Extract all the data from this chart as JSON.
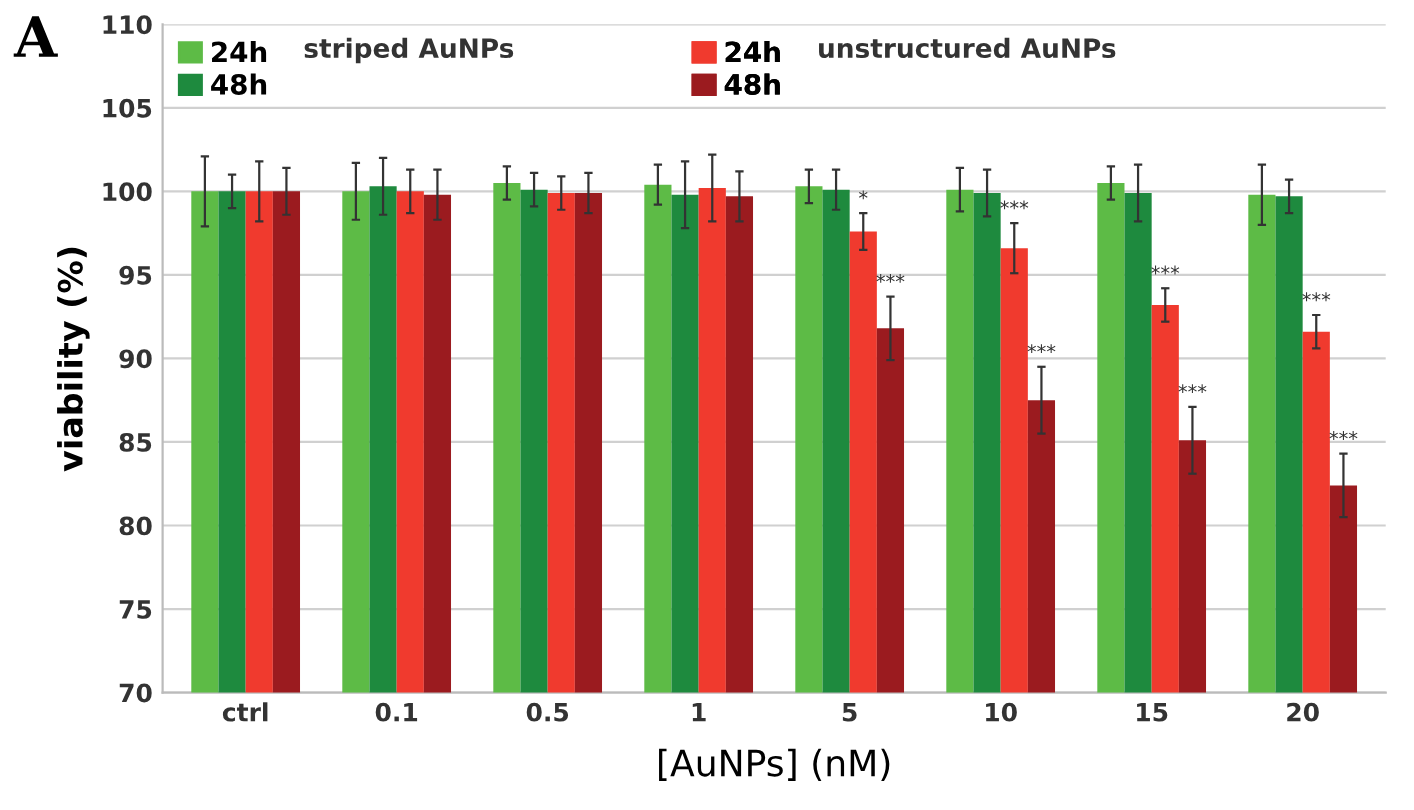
{
  "chart_data": {
    "type": "bar",
    "title": "A",
    "xlabel": "[AuNPs] (nM)",
    "ylabel": "viability (%)",
    "categories": [
      "ctrl",
      "0.1",
      "0.5",
      "1",
      "5",
      "10",
      "15",
      "20"
    ],
    "series": [
      {
        "name": "24h",
        "color": "#5dbb46",
        "values": [
          100,
          100,
          100.5,
          100.4,
          100.3,
          100.1,
          100.5,
          99.8
        ],
        "errors": [
          2.1,
          1.7,
          1.0,
          1.2,
          1.0,
          1.3,
          1.0,
          1.8
        ]
      },
      {
        "name": "48h",
        "color": "#1e8a3e",
        "values": [
          100,
          100.3,
          100.1,
          99.8,
          100.1,
          99.9,
          99.9,
          99.7
        ],
        "errors": [
          1.0,
          1.7,
          1.0,
          2.0,
          1.2,
          1.4,
          1.7,
          1.0
        ]
      },
      {
        "name": "24h",
        "color": "#f03a2e",
        "values": [
          100,
          100,
          99.9,
          100.2,
          97.6,
          96.6,
          93.2,
          91.6
        ],
        "errors": [
          1.8,
          1.3,
          1.0,
          2.0,
          1.1,
          1.5,
          1.0,
          1.0
        ]
      },
      {
        "name": "48h",
        "color": "#9b1b1f",
        "values": [
          100,
          99.8,
          99.9,
          99.7,
          91.8,
          87.5,
          85.1,
          82.4
        ],
        "errors": [
          1.4,
          1.5,
          1.2,
          1.5,
          1.9,
          2.0,
          2.0,
          1.9
        ]
      }
    ],
    "annotations": [
      "striped AuNPs",
      "unstructured AuNPs",
      {
        "text": "*",
        "x": "5",
        "y": 97.6
      },
      {
        "text": "***",
        "x": "5",
        "y": 91.8
      },
      {
        "text": "***",
        "x": "10",
        "y": 96.6
      },
      {
        "text": "***",
        "x": "10",
        "y": 87.5
      },
      {
        "text": "***",
        "x": "15",
        "y": 93.2
      },
      {
        "text": "***",
        "x": "15",
        "y": 85.1
      },
      {
        "text": "***",
        "x": "20",
        "y": 91.6
      },
      {
        "text": "***",
        "x": "20",
        "y": 82.4
      }
    ],
    "ylim": [
      70,
      110
    ],
    "yticks": [
      70,
      75,
      80,
      85,
      90,
      95,
      100,
      105,
      110
    ],
    "grid": "y",
    "legend": "top"
  }
}
